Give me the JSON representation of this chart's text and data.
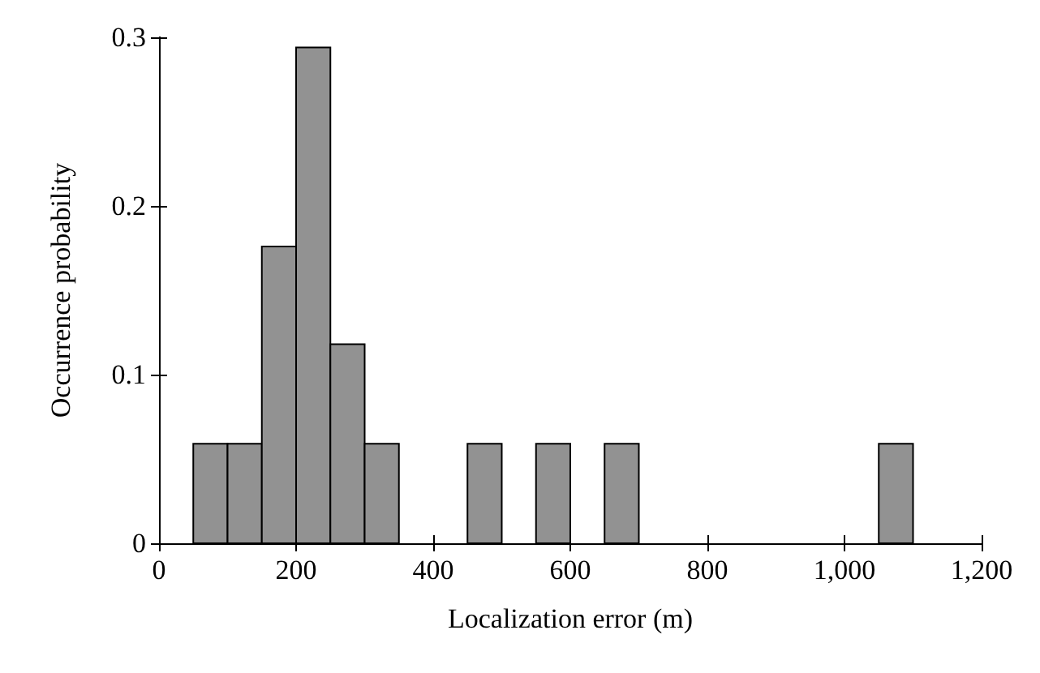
{
  "chart_data": {
    "type": "histogram",
    "xlabel": "Localization error (m)",
    "ylabel": "Occurrence probability",
    "bins": [
      50,
      100,
      150,
      200,
      250,
      300,
      350,
      400,
      450,
      500,
      550,
      600,
      650,
      700,
      750,
      800,
      850,
      900,
      950,
      1000,
      1050,
      1100
    ],
    "values": [
      0.059,
      0.059,
      0.176,
      0.294,
      0.118,
      0.059,
      0,
      0,
      0.059,
      0,
      0.059,
      0,
      0.059,
      0,
      0,
      0,
      0,
      0,
      0,
      0,
      0.059
    ],
    "color": "#929292",
    "xlim": [
      0,
      1200
    ],
    "xticks": [
      0,
      200,
      400,
      600,
      800,
      {
        "value": 1000,
        "label": "1,000"
      },
      {
        "value": 1200,
        "label": "1,200"
      }
    ],
    "ylim": [
      0,
      0.3
    ],
    "yticks": [
      0,
      0.1,
      0.2,
      0.3
    ]
  }
}
